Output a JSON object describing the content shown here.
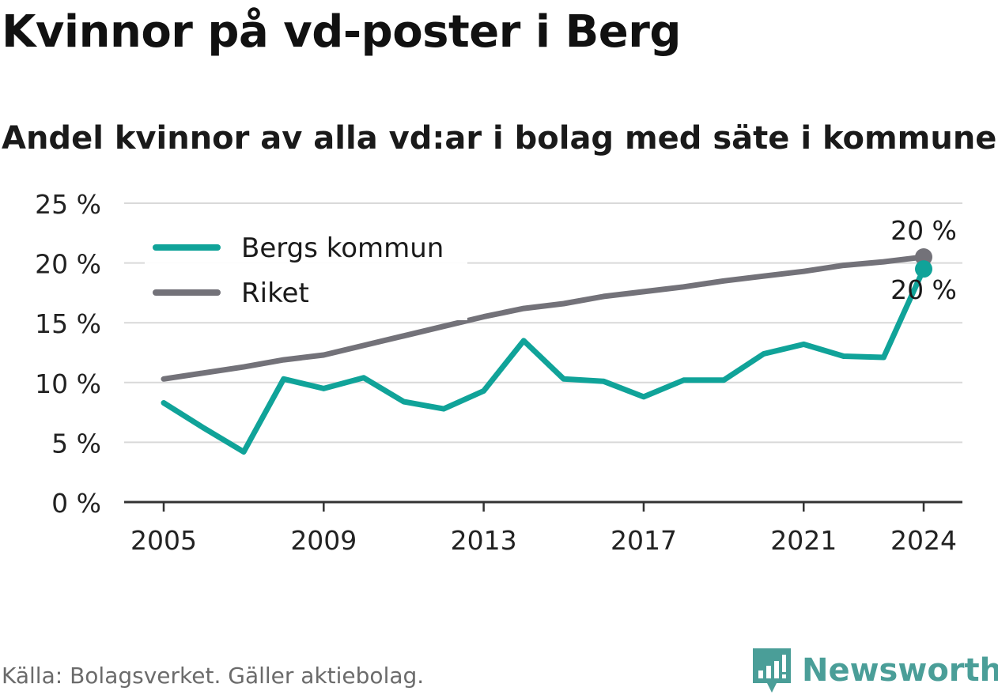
{
  "title": "Kvinnor på vd-poster i Berg",
  "subtitle": "Andel kvinnor av alla vd:ar i bolag med säte i kommunen",
  "source": "Källa: Bolagsverket. Gäller aktiebolag.",
  "brand": {
    "name": "Newsworthy",
    "color": "#4a9e98"
  },
  "chart_data": {
    "type": "line",
    "x": [
      2005,
      2006,
      2007,
      2008,
      2009,
      2010,
      2011,
      2012,
      2013,
      2014,
      2015,
      2016,
      2017,
      2018,
      2019,
      2020,
      2021,
      2022,
      2023,
      2024
    ],
    "series": [
      {
        "name": "Bergs kommun",
        "color": "#10a399",
        "values": [
          8.3,
          6.2,
          4.2,
          10.3,
          9.5,
          10.4,
          8.4,
          7.8,
          9.3,
          13.5,
          10.3,
          10.1,
          8.8,
          10.2,
          10.2,
          12.4,
          13.2,
          12.2,
          12.1,
          19.5
        ]
      },
      {
        "name": "Riket",
        "color": "#737279",
        "values": [
          10.3,
          10.8,
          11.3,
          11.9,
          12.3,
          13.1,
          13.9,
          14.7,
          15.5,
          16.2,
          16.6,
          17.2,
          17.6,
          18.0,
          18.5,
          18.9,
          19.3,
          19.8,
          20.1,
          20.5
        ]
      }
    ],
    "x_ticks": [
      2005,
      2009,
      2013,
      2017,
      2021,
      2024
    ],
    "y_ticks": [
      0,
      5,
      10,
      15,
      20,
      25
    ],
    "y_tick_labels": [
      "0 %",
      "5 %",
      "10 %",
      "15 %",
      "20 %",
      "25 %"
    ],
    "ylim": [
      0,
      25
    ],
    "annotations": [
      {
        "series": "Riket",
        "x": 2024,
        "label": "20 %"
      },
      {
        "series": "Bergs kommun",
        "x": 2024,
        "label": "20 %"
      }
    ],
    "legend": "top-left",
    "grid": true
  }
}
